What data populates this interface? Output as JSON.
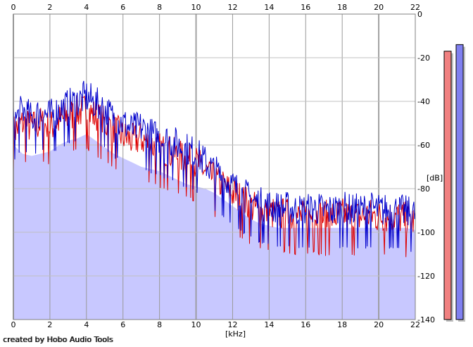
{
  "chart_data": {
    "type": "line",
    "title": "",
    "xlabel": "[kHz]",
    "ylabel": "[dB]",
    "xlim": [
      0,
      22
    ],
    "ylim": [
      -140,
      0
    ],
    "x_ticks": [
      0,
      2,
      4,
      6,
      8,
      10,
      12,
      14,
      16,
      18,
      20,
      22
    ],
    "y_ticks": [
      0,
      -20,
      -40,
      -60,
      -80,
      -100,
      -120,
      -140
    ],
    "grid": true,
    "series": [
      {
        "name": "",
        "color": "#0000cc",
        "x": [
          0,
          0.5,
          1,
          1.5,
          2,
          2.5,
          3,
          3.5,
          4,
          4.5,
          5,
          5.5,
          6,
          6.5,
          7,
          7.5,
          8,
          8.5,
          9,
          9.5,
          10,
          10.5,
          11,
          11.5,
          12,
          12.5,
          13,
          13.5,
          14,
          14.5,
          15,
          15.5,
          16,
          16.5,
          17,
          17.5,
          18,
          18.5,
          19,
          19.5,
          20,
          20.5,
          21,
          21.5,
          22
        ],
        "y": [
          -50,
          -44,
          -48,
          -45,
          -47,
          -44,
          -42,
          -40,
          -38,
          -41,
          -44,
          -48,
          -50,
          -53,
          -52,
          -55,
          -57,
          -58,
          -60,
          -62,
          -64,
          -68,
          -72,
          -75,
          -79,
          -82,
          -85,
          -87,
          -88,
          -89,
          -89,
          -90,
          -90,
          -89,
          -90,
          -90,
          -89,
          -90,
          -90,
          -89,
          -90,
          -90,
          -90,
          -91,
          -92
        ]
      },
      {
        "name": "",
        "color": "#dd0000",
        "x": [
          0,
          0.5,
          1,
          1.5,
          2,
          2.5,
          3,
          3.5,
          4,
          4.5,
          5,
          5.5,
          6,
          6.5,
          7,
          7.5,
          8,
          8.5,
          9,
          9.5,
          10,
          10.5,
          11,
          11.5,
          12,
          12.5,
          13,
          13.5,
          14,
          14.5,
          15,
          15.5,
          16,
          16.5,
          17,
          17.5,
          18,
          18.5,
          19,
          19.5,
          20,
          20.5,
          21,
          21.5,
          22
        ],
        "y": [
          -54,
          -50,
          -52,
          -50,
          -52,
          -49,
          -47,
          -45,
          -44,
          -47,
          -50,
          -53,
          -56,
          -58,
          -57,
          -60,
          -62,
          -63,
          -65,
          -67,
          -68,
          -72,
          -76,
          -79,
          -82,
          -85,
          -88,
          -90,
          -91,
          -92,
          -92,
          -93,
          -93,
          -92,
          -93,
          -93,
          -92,
          -93,
          -93,
          -92,
          -93,
          -93,
          -93,
          -94,
          -95
        ]
      }
    ],
    "filled_area": {
      "color": "#c8c8ff",
      "x": [
        0,
        0.5,
        1,
        1.5,
        2,
        2.5,
        3,
        3.5,
        4,
        4.5,
        5,
        5.5,
        6,
        6.5,
        7,
        7.5,
        8,
        8.5,
        9,
        9.5,
        10,
        10.5,
        11,
        11.5,
        12,
        12.5,
        13,
        13.5,
        14,
        14.5,
        15,
        15.5,
        16,
        16.5,
        17,
        17.5,
        18,
        18.5,
        19,
        19.5,
        20,
        20.5,
        21,
        21.5,
        22
      ],
      "y": [
        -60,
        -64,
        -65,
        -64,
        -63,
        -60,
        -58,
        -57,
        -55,
        -58,
        -61,
        -64,
        -66,
        -68,
        -70,
        -71,
        -72,
        -74,
        -76,
        -78,
        -79,
        -80,
        -82,
        -85,
        -88,
        -91,
        -94,
        -96,
        -97,
        -98,
        -98,
        -98,
        -98,
        -98,
        -98,
        -98,
        -98,
        -98,
        -98,
        -98,
        -98,
        -98,
        -98,
        -98,
        -99
      ]
    },
    "level_meters": [
      {
        "color": "#f08080",
        "level_db": -17
      },
      {
        "color": "#8080f0",
        "level_db": -14
      }
    ]
  },
  "footer": {
    "credit_text": "created by Hobo Audio Tools"
  }
}
